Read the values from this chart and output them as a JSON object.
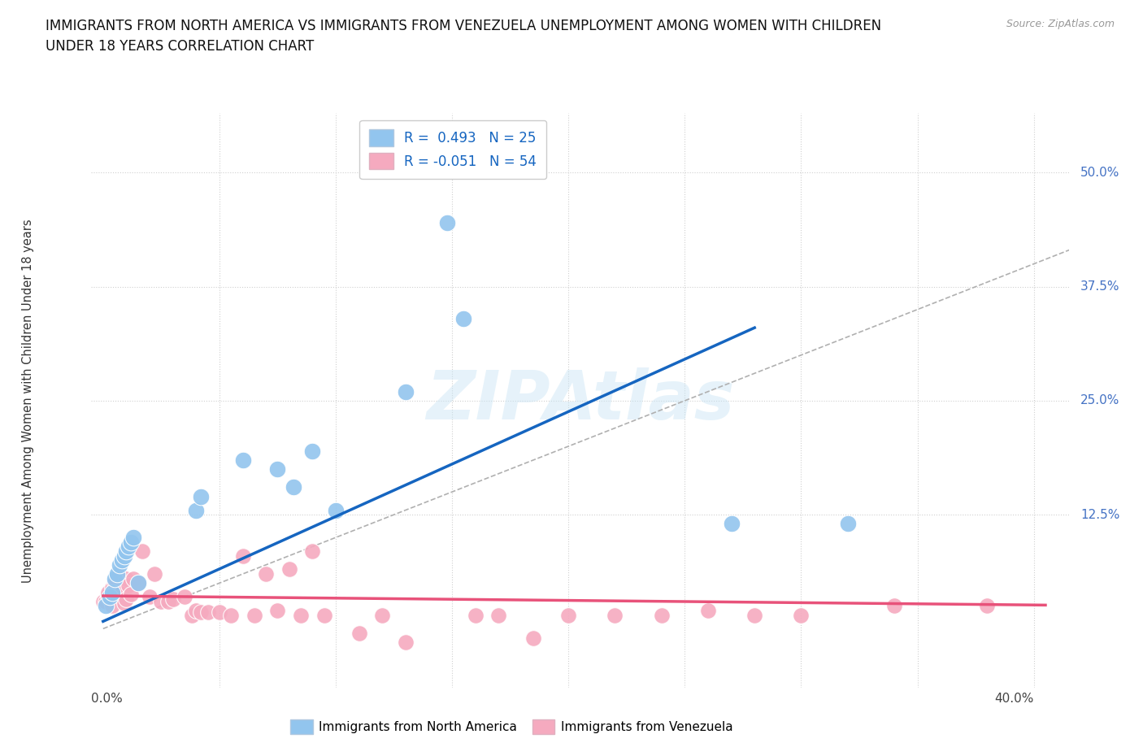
{
  "title_line1": "IMMIGRANTS FROM NORTH AMERICA VS IMMIGRANTS FROM VENEZUELA UNEMPLOYMENT AMONG WOMEN WITH CHILDREN",
  "title_line2": "UNDER 18 YEARS CORRELATION CHART",
  "source": "Source: ZipAtlas.com",
  "ylabel": "Unemployment Among Women with Children Under 18 years",
  "xlim": [
    -0.005,
    0.415
  ],
  "ylim": [
    -0.065,
    0.565
  ],
  "yticks": [
    0.0,
    0.125,
    0.25,
    0.375,
    0.5
  ],
  "ytick_labels": [
    "",
    "12.5%",
    "25.0%",
    "37.5%",
    "50.0%"
  ],
  "background_color": "#ffffff",
  "grid_color": "#d0d0d0",
  "watermark": "ZIPAtlas",
  "legend_r1": "R =  0.493   N = 25",
  "legend_r2": "R = -0.051   N = 54",
  "color_blue": "#92C5EE",
  "color_pink": "#F5AABF",
  "trendline_blue": "#1565C0",
  "trendline_pink": "#E8527A",
  "trendline_dashed_color": "#b0b0b0",
  "north_america_x": [
    0.001,
    0.003,
    0.004,
    0.005,
    0.006,
    0.007,
    0.008,
    0.009,
    0.01,
    0.011,
    0.012,
    0.013,
    0.015,
    0.04,
    0.042,
    0.06,
    0.075,
    0.082,
    0.09,
    0.1,
    0.13,
    0.148,
    0.155,
    0.27,
    0.32
  ],
  "north_america_y": [
    0.025,
    0.035,
    0.04,
    0.055,
    0.06,
    0.07,
    0.075,
    0.08,
    0.085,
    0.09,
    0.095,
    0.1,
    0.05,
    0.13,
    0.145,
    0.185,
    0.175,
    0.155,
    0.195,
    0.13,
    0.26,
    0.445,
    0.34,
    0.115,
    0.115
  ],
  "venezuela_x": [
    0.0,
    0.001,
    0.002,
    0.002,
    0.003,
    0.004,
    0.004,
    0.005,
    0.005,
    0.006,
    0.007,
    0.008,
    0.009,
    0.01,
    0.01,
    0.011,
    0.012,
    0.013,
    0.015,
    0.017,
    0.02,
    0.022,
    0.025,
    0.028,
    0.03,
    0.035,
    0.038,
    0.04,
    0.042,
    0.045,
    0.05,
    0.055,
    0.06,
    0.065,
    0.07,
    0.075,
    0.08,
    0.085,
    0.09,
    0.095,
    0.11,
    0.12,
    0.13,
    0.16,
    0.17,
    0.185,
    0.2,
    0.22,
    0.24,
    0.26,
    0.28,
    0.3,
    0.34,
    0.38
  ],
  "venezuela_y": [
    0.03,
    0.03,
    0.035,
    0.04,
    0.032,
    0.025,
    0.045,
    0.04,
    0.05,
    0.038,
    0.06,
    0.04,
    0.028,
    0.032,
    0.055,
    0.048,
    0.038,
    0.055,
    0.05,
    0.085,
    0.035,
    0.06,
    0.03,
    0.03,
    0.032,
    0.035,
    0.015,
    0.02,
    0.018,
    0.018,
    0.018,
    0.015,
    0.08,
    0.015,
    0.06,
    0.02,
    0.065,
    0.015,
    0.085,
    0.015,
    -0.005,
    0.015,
    -0.015,
    0.015,
    0.015,
    -0.01,
    0.015,
    0.015,
    0.015,
    0.02,
    0.015,
    0.015,
    0.025,
    0.025
  ]
}
